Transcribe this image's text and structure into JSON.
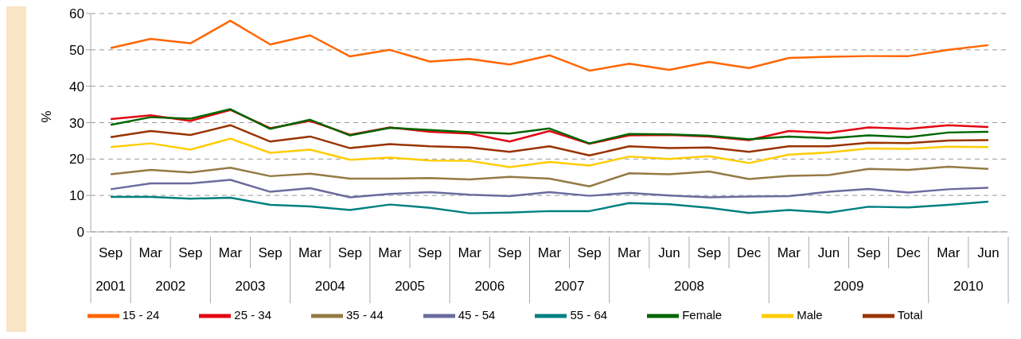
{
  "chart_data": {
    "type": "line",
    "ylabel": "%",
    "ylim": [
      0,
      60
    ],
    "yticks": [
      0,
      10,
      20,
      30,
      40,
      50,
      60
    ],
    "grid": "y",
    "legend": "bottom",
    "marker": "none",
    "line_style": "solid",
    "categories": [
      "Sep",
      "Mar",
      "Sep",
      "Mar",
      "Sep",
      "Mar",
      "Sep",
      "Mar",
      "Sep",
      "Mar",
      "Sep",
      "Mar",
      "Sep",
      "Mar",
      "Jun",
      "Sep",
      "Dec",
      "Mar",
      "Jun",
      "Sep",
      "Dec",
      "Mar",
      "Jun"
    ],
    "annotations": [
      "2001",
      "2002",
      "2003",
      "2004",
      "2005",
      "2006",
      "2007",
      "2008",
      "2009",
      "2010"
    ],
    "series": [
      {
        "name": "15 - 24",
        "color": "#ff6600",
        "values": [
          50.5,
          53,
          51.8,
          58,
          51.5,
          54,
          48.2,
          50,
          46.8,
          47.5,
          46,
          48.5,
          44.3,
          46.2,
          44.5,
          46.7,
          45,
          47.8,
          48.1,
          48.3,
          48.3,
          50,
          51.3
        ]
      },
      {
        "name": "25 - 34",
        "color": "#e30613",
        "values": [
          31,
          32,
          30.5,
          33.5,
          28.5,
          30.5,
          26.7,
          28.7,
          27.5,
          27,
          24.8,
          27.7,
          24.2,
          26.5,
          26.6,
          26.2,
          25.2,
          27.7,
          27.2,
          28.7,
          28.3,
          29.3,
          28.8
        ]
      },
      {
        "name": "35 - 44",
        "color": "#947a45",
        "values": [
          15.8,
          17,
          16.3,
          17.6,
          15.3,
          16,
          14.6,
          14.6,
          14.8,
          14.4,
          15.1,
          14.6,
          12.5,
          16.1,
          15.8,
          16.6,
          14.5,
          15.4,
          15.6,
          17.3,
          17,
          17.9,
          17.3
        ]
      },
      {
        "name": "45 - 54",
        "color": "#6b6b9e",
        "values": [
          11.7,
          13.3,
          13.3,
          14.3,
          11,
          12,
          9.5,
          10.4,
          10.9,
          10.2,
          9.8,
          10.9,
          9.9,
          10.7,
          10,
          9.5,
          9.7,
          9.8,
          11,
          11.8,
          10.8,
          11.7,
          12.1
        ]
      },
      {
        "name": "55 - 64",
        "color": "#008080",
        "values": [
          9.6,
          9.6,
          9.1,
          9.4,
          7.4,
          7,
          6,
          7.5,
          6.6,
          5.1,
          5.3,
          5.7,
          5.7,
          7.9,
          7.6,
          6.6,
          5.2,
          6,
          5.3,
          6.9,
          6.7,
          7.4,
          8.3
        ]
      },
      {
        "name": "Male",
        "color": "#ffcc00",
        "values": [
          23.3,
          24.3,
          22.6,
          25.6,
          21.7,
          22.6,
          19.8,
          20.4,
          19.6,
          19.5,
          17.8,
          19.2,
          18.2,
          20.7,
          20,
          20.8,
          18.9,
          21.2,
          21.8,
          22.9,
          22.8,
          23.4,
          23.3
        ]
      },
      {
        "name": "Female",
        "color": "#006600",
        "values": [
          29.4,
          31.5,
          31.1,
          33.7,
          28.3,
          30.8,
          26.5,
          28.6,
          28,
          27.4,
          27,
          28.4,
          24.3,
          26.9,
          26.8,
          26.4,
          25.4,
          26.2,
          25.7,
          26.5,
          26,
          27.3,
          27.5
        ]
      },
      {
        "name": "Total",
        "color": "#993300",
        "values": [
          26,
          27.7,
          26.6,
          29.3,
          24.8,
          26.2,
          23,
          24.1,
          23.5,
          23.2,
          22,
          23.5,
          21,
          23.5,
          23,
          23.2,
          22,
          23.5,
          23.5,
          24.5,
          24.4,
          25.1,
          25.2
        ]
      }
    ]
  }
}
